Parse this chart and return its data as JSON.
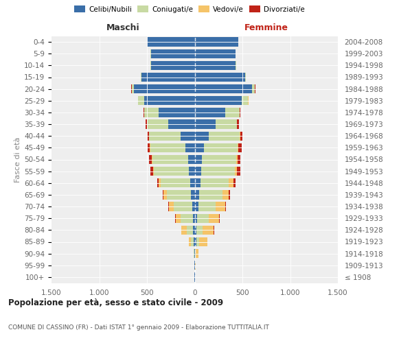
{
  "age_groups": [
    "100+",
    "95-99",
    "90-94",
    "85-89",
    "80-84",
    "75-79",
    "70-74",
    "65-69",
    "60-64",
    "55-59",
    "50-54",
    "45-49",
    "40-44",
    "35-39",
    "30-34",
    "25-29",
    "20-24",
    "15-19",
    "10-14",
    "5-9",
    "0-4"
  ],
  "birth_years": [
    "≤ 1908",
    "1909-1913",
    "1914-1918",
    "1919-1923",
    "1924-1928",
    "1929-1933",
    "1934-1938",
    "1939-1943",
    "1944-1948",
    "1949-1953",
    "1954-1958",
    "1959-1963",
    "1964-1968",
    "1969-1973",
    "1974-1978",
    "1979-1983",
    "1984-1988",
    "1989-1993",
    "1994-1998",
    "1999-2003",
    "2004-2008"
  ],
  "colors": {
    "celibi": "#3a6ea8",
    "coniugati": "#c8daa3",
    "vedovi": "#f5c469",
    "divorziati": "#c02318"
  },
  "maschi_celibi": [
    2,
    2,
    4,
    12,
    15,
    20,
    28,
    38,
    48,
    60,
    70,
    100,
    145,
    280,
    380,
    530,
    640,
    560,
    460,
    460,
    500
  ],
  "maschi_coniugati": [
    0,
    0,
    5,
    25,
    70,
    130,
    195,
    255,
    310,
    370,
    375,
    365,
    335,
    220,
    150,
    60,
    20,
    5,
    2,
    1,
    0
  ],
  "maschi_vedovi": [
    0,
    0,
    4,
    25,
    55,
    50,
    45,
    32,
    18,
    8,
    5,
    3,
    2,
    2,
    1,
    1,
    1,
    0,
    0,
    0,
    0
  ],
  "maschi_divorziati": [
    0,
    0,
    1,
    2,
    3,
    7,
    12,
    12,
    18,
    25,
    25,
    25,
    15,
    10,
    5,
    3,
    1,
    1,
    0,
    0,
    0
  ],
  "femmine_celibi": [
    2,
    2,
    5,
    15,
    20,
    28,
    38,
    48,
    58,
    68,
    78,
    100,
    150,
    220,
    320,
    490,
    600,
    530,
    430,
    430,
    460
  ],
  "femmine_coniugati": [
    0,
    2,
    8,
    35,
    65,
    120,
    185,
    245,
    300,
    350,
    360,
    350,
    320,
    220,
    150,
    70,
    30,
    5,
    2,
    1,
    0
  ],
  "femmine_vedovi": [
    2,
    5,
    28,
    80,
    115,
    108,
    95,
    65,
    45,
    22,
    12,
    8,
    5,
    3,
    2,
    2,
    2,
    1,
    0,
    0,
    0
  ],
  "femmine_divorziati": [
    0,
    0,
    1,
    2,
    3,
    5,
    12,
    10,
    28,
    38,
    32,
    32,
    28,
    18,
    8,
    4,
    2,
    1,
    0,
    0,
    0
  ],
  "title": "Popolazione per età, sesso e stato civile - 2009",
  "subtitle": "COMUNE DI CASSINO (FR) - Dati ISTAT 1° gennaio 2009 - Elaborazione TUTTITALIA.IT",
  "ylabel_left": "Fasce di età",
  "header_left": "Maschi",
  "header_right": "Femmine",
  "xlim": 1500,
  "bg_color": "#eeeeee",
  "legend_labels": [
    "Celibi/Nubili",
    "Coniugati/e",
    "Vedovi/e",
    "Divorziati/e"
  ],
  "xtick_labels": [
    "1.500",
    "1.000",
    "500",
    "0",
    "500",
    "1.000",
    "1.500"
  ]
}
